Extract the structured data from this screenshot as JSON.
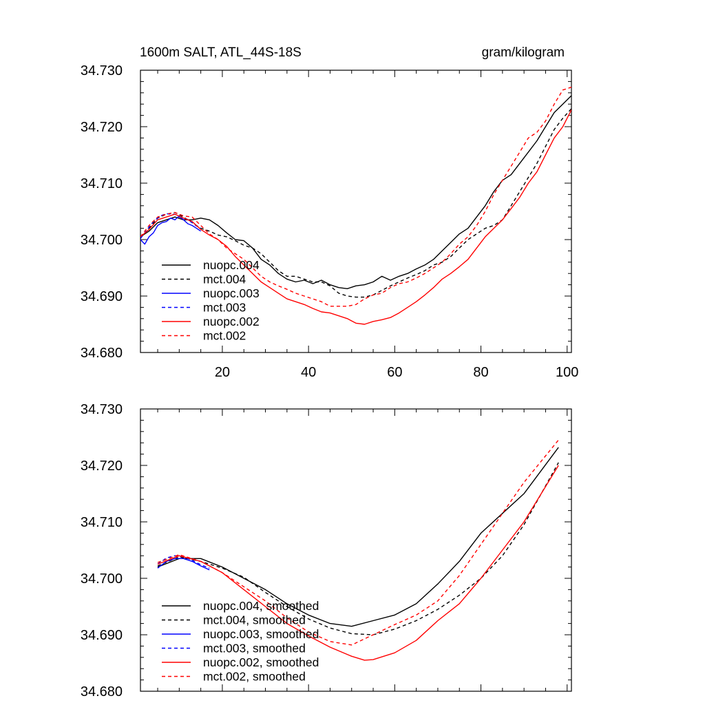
{
  "title_left": "1600m SALT, ATL_44S-18S",
  "title_right": "gram/kilogram",
  "chart_data": [
    {
      "type": "line",
      "panel": "top",
      "title_left": "1600m SALT, ATL_44S-18S",
      "title_right": "gram/kilogram",
      "xlim": [
        1,
        101
      ],
      "ylim": [
        34.68,
        34.73
      ],
      "x_ticks": [
        20,
        40,
        60,
        80,
        100
      ],
      "x_tick_labels": [
        "20",
        "40",
        "60",
        "80",
        "100"
      ],
      "y_ticks": [
        34.68,
        34.69,
        34.7,
        34.71,
        34.72,
        34.73
      ],
      "y_tick_labels": [
        "34.680",
        "34.690",
        "34.700",
        "34.710",
        "34.720",
        "34.730"
      ],
      "legend_position": "lower-left",
      "series": [
        {
          "name": "nuopc.004",
          "color": "#000000",
          "dash": "solid",
          "x": [
            1,
            3,
            5,
            7,
            9,
            11,
            13,
            15,
            17,
            19,
            21,
            23,
            25,
            27,
            29,
            31,
            33,
            35,
            37,
            39,
            41,
            43,
            45,
            47,
            49,
            51,
            53,
            55,
            57,
            59,
            61,
            63,
            65,
            67,
            69,
            71,
            73,
            75,
            77,
            79,
            81,
            83,
            85,
            87,
            89,
            91,
            93,
            95,
            97,
            99,
            101
          ],
          "y": [
            34.7005,
            34.7015,
            34.703,
            34.7035,
            34.704,
            34.7035,
            34.7035,
            34.7038,
            34.7035,
            34.7025,
            34.7012,
            34.7,
            34.6998,
            34.6985,
            34.6965,
            34.6955,
            34.694,
            34.693,
            34.6925,
            34.6928,
            34.6922,
            34.6928,
            34.692,
            34.6915,
            34.6913,
            34.6918,
            34.692,
            34.6925,
            34.6935,
            34.6928,
            34.6935,
            34.694,
            34.6948,
            34.6955,
            34.6965,
            34.698,
            34.6995,
            34.701,
            34.702,
            34.704,
            34.706,
            34.7085,
            34.7105,
            34.7115,
            34.7135,
            34.7155,
            34.7175,
            34.72,
            34.7225,
            34.724,
            34.7255
          ]
        },
        {
          "name": "mct.004",
          "color": "#000000",
          "dash": "dashed",
          "x": [
            1,
            3,
            5,
            7,
            9,
            11,
            13,
            15,
            17,
            19,
            21,
            23,
            25,
            27,
            29,
            31,
            33,
            35,
            37,
            39,
            41,
            43,
            45,
            47,
            49,
            51,
            53,
            55,
            57,
            59,
            61,
            63,
            65,
            67,
            69,
            71,
            73,
            75,
            77,
            79,
            81,
            83,
            85,
            87,
            89,
            91,
            93,
            95,
            97,
            99,
            101
          ],
          "y": [
            34.7003,
            34.702,
            34.7038,
            34.7045,
            34.7048,
            34.704,
            34.703,
            34.702,
            34.7015,
            34.7008,
            34.7005,
            34.6998,
            34.699,
            34.6985,
            34.6975,
            34.696,
            34.6945,
            34.6935,
            34.6935,
            34.693,
            34.6925,
            34.6925,
            34.6918,
            34.6905,
            34.69,
            34.6898,
            34.6898,
            34.6902,
            34.691,
            34.6918,
            34.6925,
            34.6932,
            34.6938,
            34.6945,
            34.6955,
            34.696,
            34.697,
            34.6985,
            34.7,
            34.701,
            34.702,
            34.7025,
            34.7035,
            34.706,
            34.7085,
            34.711,
            34.7135,
            34.7165,
            34.7195,
            34.7215,
            34.7232
          ]
        },
        {
          "name": "nuopc.003",
          "color": "#0000ff",
          "dash": "solid",
          "x": [
            1,
            2,
            3,
            4,
            5,
            6,
            7,
            8,
            9,
            10,
            11,
            12,
            13,
            14,
            15
          ],
          "y": [
            34.7,
            34.6992,
            34.7005,
            34.7012,
            34.7025,
            34.703,
            34.7032,
            34.7038,
            34.7035,
            34.7042,
            34.7035,
            34.7028,
            34.7025,
            34.702,
            34.7015
          ]
        },
        {
          "name": "mct.003",
          "color": "#0000ff",
          "dash": "dashed",
          "x": [
            1,
            2,
            3,
            4,
            5,
            6,
            7,
            8,
            9,
            10,
            11,
            12,
            13,
            14,
            15
          ],
          "y": [
            34.7002,
            34.7012,
            34.7022,
            34.7032,
            34.7038,
            34.7043,
            34.7046,
            34.7045,
            34.7045,
            34.704,
            34.7037,
            34.7036,
            34.703,
            34.7024,
            34.702
          ]
        },
        {
          "name": "nuopc.002",
          "color": "#ff0000",
          "dash": "solid",
          "x": [
            1,
            3,
            5,
            7,
            9,
            11,
            13,
            15,
            17,
            19,
            21,
            23,
            25,
            27,
            29,
            31,
            33,
            35,
            37,
            39,
            41,
            43,
            45,
            47,
            49,
            51,
            53,
            55,
            57,
            59,
            61,
            63,
            65,
            67,
            69,
            71,
            73,
            75,
            77,
            79,
            81,
            83,
            85,
            87,
            89,
            91,
            93,
            95,
            97,
            99,
            101
          ],
          "y": [
            34.7005,
            34.7018,
            34.7035,
            34.704,
            34.7045,
            34.7038,
            34.7032,
            34.7018,
            34.7008,
            34.7,
            34.6988,
            34.697,
            34.6955,
            34.694,
            34.6925,
            34.6915,
            34.6905,
            34.6895,
            34.689,
            34.6885,
            34.6878,
            34.6872,
            34.687,
            34.6865,
            34.686,
            34.6852,
            34.685,
            34.6855,
            34.6858,
            34.6862,
            34.687,
            34.688,
            34.689,
            34.6902,
            34.6915,
            34.693,
            34.694,
            34.6952,
            34.6965,
            34.6985,
            34.7005,
            34.702,
            34.7035,
            34.7055,
            34.7075,
            34.71,
            34.712,
            34.715,
            34.718,
            34.72,
            34.723
          ]
        },
        {
          "name": "mct.002",
          "color": "#ff0000",
          "dash": "dashed",
          "x": [
            1,
            3,
            5,
            7,
            9,
            11,
            13,
            15,
            17,
            19,
            21,
            23,
            25,
            27,
            29,
            31,
            33,
            35,
            37,
            39,
            41,
            43,
            45,
            47,
            49,
            51,
            53,
            55,
            57,
            59,
            61,
            63,
            65,
            67,
            69,
            71,
            73,
            75,
            77,
            79,
            81,
            83,
            85,
            87,
            89,
            91,
            93,
            95,
            97,
            99,
            101
          ],
          "y": [
            34.7005,
            34.7025,
            34.704,
            34.7045,
            34.7048,
            34.7042,
            34.704,
            34.7025,
            34.701,
            34.7,
            34.6985,
            34.6975,
            34.6965,
            34.695,
            34.6935,
            34.6925,
            34.6918,
            34.6912,
            34.6905,
            34.69,
            34.6895,
            34.689,
            34.6882,
            34.6882,
            34.6882,
            34.6885,
            34.6895,
            34.6902,
            34.6905,
            34.6915,
            34.6922,
            34.6925,
            34.6932,
            34.694,
            34.695,
            34.696,
            34.6975,
            34.6992,
            34.7005,
            34.7025,
            34.705,
            34.708,
            34.7105,
            34.713,
            34.7155,
            34.718,
            34.719,
            34.721,
            34.724,
            34.7265,
            34.727
          ]
        }
      ],
      "legend": [
        "nuopc.004",
        "mct.004",
        "nuopc.003",
        "mct.003",
        "nuopc.002",
        "mct.002"
      ]
    },
    {
      "type": "line",
      "panel": "bottom",
      "xlim": [
        1,
        101
      ],
      "ylim": [
        34.68,
        34.73
      ],
      "x_ticks": [
        20,
        40,
        60,
        80,
        100
      ],
      "x_tick_labels": [],
      "y_ticks": [
        34.68,
        34.69,
        34.7,
        34.71,
        34.72,
        34.73
      ],
      "y_tick_labels": [
        "34.680",
        "34.690",
        "34.700",
        "34.710",
        "34.720",
        "34.730"
      ],
      "legend_position": "lower-left",
      "series": [
        {
          "name": "nuopc.004, smoothed",
          "color": "#000000",
          "dash": "solid",
          "x": [
            5,
            10,
            15,
            20,
            25,
            30,
            35,
            40,
            45,
            50,
            55,
            60,
            65,
            70,
            75,
            80,
            85,
            90,
            98
          ],
          "y": [
            34.702,
            34.7035,
            34.7035,
            34.702,
            34.7,
            34.698,
            34.6955,
            34.6935,
            34.692,
            34.6915,
            34.6925,
            34.6935,
            34.6955,
            34.699,
            34.703,
            34.708,
            34.7115,
            34.715,
            34.7232
          ]
        },
        {
          "name": "mct.004, smoothed",
          "color": "#000000",
          "dash": "dashed",
          "x": [
            5,
            10,
            15,
            20,
            25,
            30,
            35,
            40,
            45,
            50,
            55,
            60,
            65,
            70,
            75,
            80,
            85,
            90,
            98
          ],
          "y": [
            34.7022,
            34.7038,
            34.703,
            34.7018,
            34.7002,
            34.6975,
            34.695,
            34.6928,
            34.6912,
            34.6902,
            34.69,
            34.691,
            34.6925,
            34.6945,
            34.697,
            34.7,
            34.704,
            34.7095,
            34.7205
          ]
        },
        {
          "name": "nuopc.003, smoothed",
          "color": "#0000ff",
          "dash": "solid",
          "x": [
            5,
            7,
            9,
            11,
            13,
            15,
            17
          ],
          "y": [
            34.7018,
            34.703,
            34.7035,
            34.7035,
            34.703,
            34.7022,
            34.7015
          ]
        },
        {
          "name": "mct.003, smoothed",
          "color": "#0000ff",
          "dash": "dashed",
          "x": [
            5,
            7,
            9,
            11,
            13,
            15,
            17
          ],
          "y": [
            34.7025,
            34.7036,
            34.704,
            34.7038,
            34.7032,
            34.7024,
            34.7018
          ]
        },
        {
          "name": "nuopc.002, smoothed",
          "color": "#ff0000",
          "dash": "solid",
          "x": [
            5,
            10,
            15,
            20,
            25,
            30,
            35,
            40,
            45,
            50,
            53,
            55,
            60,
            65,
            70,
            75,
            80,
            85,
            90,
            98
          ],
          "y": [
            34.7025,
            34.704,
            34.703,
            34.701,
            34.698,
            34.695,
            34.692,
            34.6898,
            34.6878,
            34.6862,
            34.6855,
            34.6856,
            34.6868,
            34.689,
            34.6925,
            34.6955,
            34.7,
            34.705,
            34.71,
            34.72
          ]
        },
        {
          "name": "mct.002, smoothed",
          "color": "#ff0000",
          "dash": "dashed",
          "x": [
            5,
            10,
            15,
            20,
            25,
            30,
            35,
            40,
            45,
            50,
            55,
            60,
            65,
            70,
            75,
            80,
            85,
            90,
            98
          ],
          "y": [
            34.7028,
            34.7042,
            34.703,
            34.701,
            34.6985,
            34.696,
            34.693,
            34.6905,
            34.6888,
            34.6882,
            34.69,
            34.6918,
            34.6935,
            34.696,
            34.7005,
            34.706,
            34.7115,
            34.717,
            34.7245
          ]
        }
      ],
      "legend": [
        "nuopc.004, smoothed",
        "mct.004, smoothed",
        "nuopc.003, smoothed",
        "mct.003, smoothed",
        "nuopc.002, smoothed",
        "mct.002, smoothed"
      ]
    }
  ]
}
